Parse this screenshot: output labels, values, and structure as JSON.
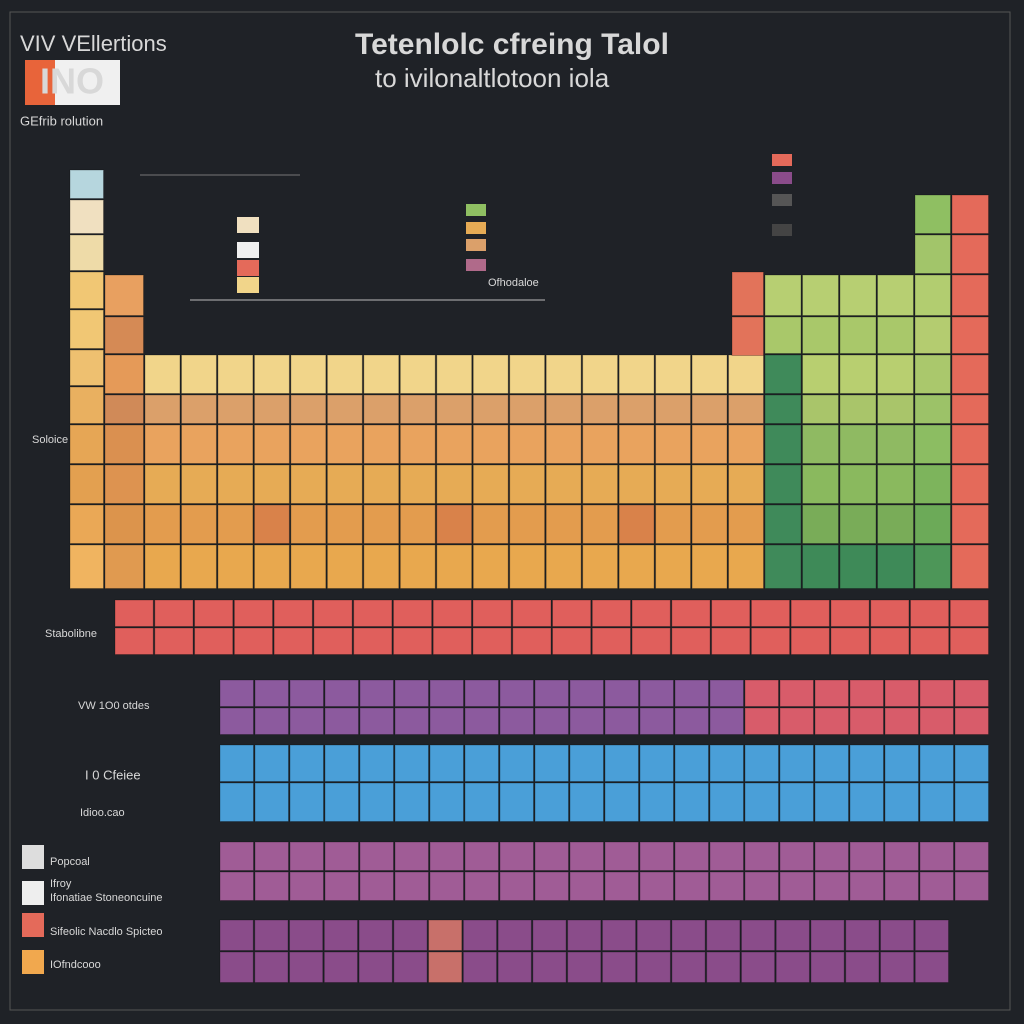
{
  "header": {
    "brand": "VIV VEllertions",
    "logo": "INO",
    "tagline": "GEfrib rolution",
    "title": "Tetenlolc cfreing Talol",
    "subtitle": "to ivilonaltlotoon iola"
  },
  "side_labels": [
    "Soloice",
    "Stabolibne",
    "VW 1O0 otdes",
    "I 0 Cfeiee",
    "Idioo.cao"
  ],
  "legend": [
    "Popcoal",
    "Ifroy",
    "Ifonatiae Stoneoncuine",
    "Sifeolic Nacdlo Spicteo",
    "IOfndcooo"
  ],
  "annotation": "Ofhodaloe"
}
